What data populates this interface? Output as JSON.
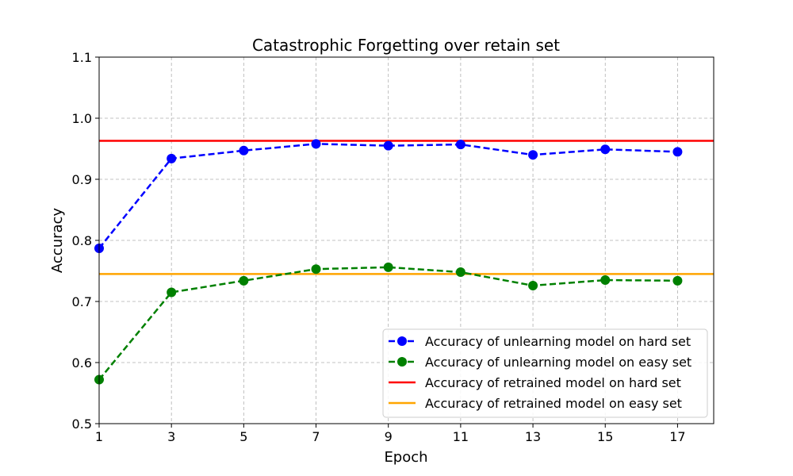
{
  "chart_data": {
    "type": "line",
    "title": "Catastrophic Forgetting over retain set",
    "xlabel": "Epoch",
    "ylabel": "Accuracy",
    "x": [
      1,
      3,
      5,
      7,
      9,
      11,
      13,
      15,
      17
    ],
    "x_ticks": [
      "1",
      "3",
      "5",
      "7",
      "9",
      "11",
      "13",
      "15",
      "17"
    ],
    "y_ticks": [
      "0.5",
      "0.6",
      "0.7",
      "0.8",
      "0.9",
      "1.0",
      "1.1"
    ],
    "xlim": [
      1,
      18
    ],
    "ylim": [
      0.5,
      1.1
    ],
    "grid": true,
    "legend_position": "lower-right",
    "series": [
      {
        "name": "Accuracy of unlearning model on hard set",
        "kind": "dashed-markers",
        "color": "#0000ff",
        "values": [
          0.787,
          0.934,
          0.947,
          0.958,
          0.955,
          0.957,
          0.94,
          0.949,
          0.945
        ]
      },
      {
        "name": "Accuracy of unlearning model on easy set",
        "kind": "dashed-markers",
        "color": "#008000",
        "values": [
          0.572,
          0.715,
          0.734,
          0.753,
          0.756,
          0.748,
          0.726,
          0.735,
          0.734
        ]
      },
      {
        "name": "Accuracy of retrained model on hard set",
        "kind": "hline",
        "color": "#ff0000",
        "value": 0.963
      },
      {
        "name": "Accuracy of retrained model on easy set",
        "kind": "hline",
        "color": "#ffa500",
        "value": 0.745
      }
    ]
  }
}
